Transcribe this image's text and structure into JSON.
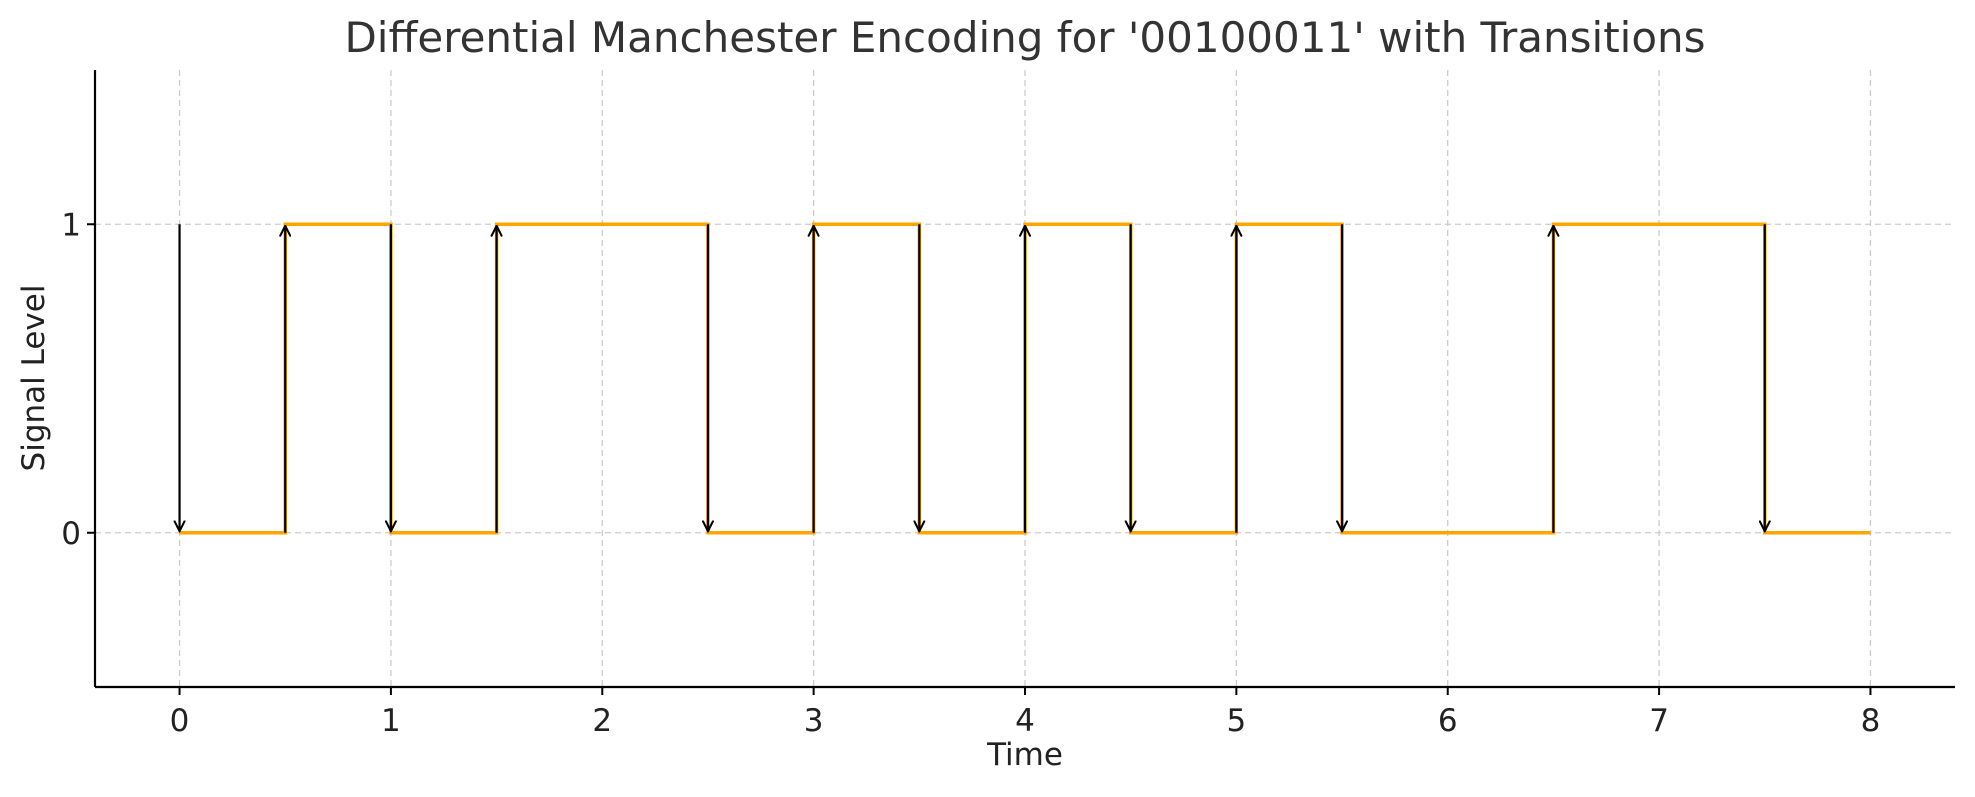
{
  "chart_data": {
    "type": "line",
    "title": "Differential Manchester Encoding for '00100011' with Transitions",
    "xlabel": "Time",
    "ylabel": "Signal Level",
    "xlim": [
      -0.4,
      8.4
    ],
    "ylim": [
      -0.5,
      1.5
    ],
    "x_ticks": [
      0,
      1,
      2,
      3,
      4,
      5,
      6,
      7,
      8
    ],
    "y_ticks": [
      0,
      1
    ],
    "grid": true,
    "legend": "none",
    "series": [
      {
        "step": "post",
        "color": "#FFA500",
        "x": [
          0,
          0.5,
          1,
          1.5,
          2,
          2.5,
          3,
          3.5,
          4,
          4.5,
          5,
          5.5,
          6,
          6.5,
          7,
          7.5,
          8
        ],
        "y": [
          0,
          1,
          0,
          1,
          1,
          0,
          1,
          0,
          1,
          0,
          1,
          0,
          0,
          1,
          1,
          0,
          0
        ]
      }
    ],
    "transitions": {
      "color": "#000000",
      "items": [
        {
          "x": 0,
          "from": 1,
          "to": 0
        },
        {
          "x": 0.5,
          "from": 0,
          "to": 1
        },
        {
          "x": 1,
          "from": 1,
          "to": 0
        },
        {
          "x": 1.5,
          "from": 0,
          "to": 1
        },
        {
          "x": 2.5,
          "from": 1,
          "to": 0
        },
        {
          "x": 3,
          "from": 0,
          "to": 1
        },
        {
          "x": 3.5,
          "from": 1,
          "to": 0
        },
        {
          "x": 4,
          "from": 0,
          "to": 1
        },
        {
          "x": 4.5,
          "from": 1,
          "to": 0
        },
        {
          "x": 5,
          "from": 0,
          "to": 1
        },
        {
          "x": 5.5,
          "from": 1,
          "to": 0
        },
        {
          "x": 6.5,
          "from": 0,
          "to": 1
        },
        {
          "x": 7.5,
          "from": 1,
          "to": 0
        }
      ]
    }
  }
}
